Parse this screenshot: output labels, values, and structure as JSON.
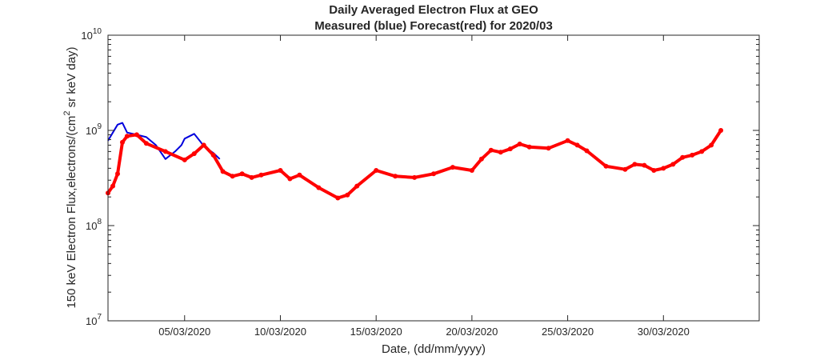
{
  "chart_data": {
    "type": "line",
    "title": "Daily Averaged Electron Flux at GEO",
    "subtitle": "Measured (blue) Forecast(red) for 2020/03",
    "xlabel": "Date, (dd/mm/yyyy)",
    "ylabel_parts": [
      "150 keV Electron Flux,electrons/(cm",
      "2",
      " sr keV day)"
    ],
    "x_scale": "date",
    "xlim": [
      "2020-03-01",
      "2020-04-04"
    ],
    "x_ticks": [
      "2020-03-05",
      "2020-03-10",
      "2020-03-15",
      "2020-03-20",
      "2020-03-25",
      "2020-03-30"
    ],
    "x_tick_labels": [
      "05/03/2020",
      "10/03/2020",
      "15/03/2020",
      "20/03/2020",
      "25/03/2020",
      "30/03/2020"
    ],
    "y_scale": "log",
    "ylim": [
      10000000.0,
      10000000000.0
    ],
    "y_ticks": [
      10000000.0,
      100000000.0,
      1000000000.0,
      10000000000.0
    ],
    "y_tick_labels": [
      {
        "base": "10",
        "exp": "7"
      },
      {
        "base": "10",
        "exp": "8"
      },
      {
        "base": "10",
        "exp": "9"
      },
      {
        "base": "10",
        "exp": "10"
      }
    ],
    "grid": false,
    "series": [
      {
        "style": "line",
        "color": "#0000dd",
        "x": [
          "2020-03-01",
          "2020-03-01T12:00",
          "2020-03-01T18:00",
          "2020-03-02",
          "2020-03-02T12:00",
          "2020-03-03",
          "2020-03-03T12:00",
          "2020-03-04",
          "2020-03-04T12:00",
          "2020-03-04T20:00",
          "2020-03-05",
          "2020-03-05T12:00",
          "2020-03-05T20:00",
          "2020-03-06",
          "2020-03-06T12:00",
          "2020-03-06T20:00"
        ],
        "y": [
          780000000.0,
          1150000000.0,
          1200000000.0,
          950000000.0,
          900000000.0,
          850000000.0,
          700000000.0,
          500000000.0,
          600000000.0,
          700000000.0,
          820000000.0,
          920000000.0,
          760000000.0,
          680000000.0,
          580000000.0,
          500000000.0
        ]
      },
      {
        "style": "markers",
        "color": "#ff0000",
        "x": [
          "2020-03-01",
          "2020-03-01T06:00",
          "2020-03-01T12:00",
          "2020-03-01T18:00",
          "2020-03-02",
          "2020-03-02T12:00",
          "2020-03-03",
          "2020-03-04",
          "2020-03-05",
          "2020-03-05T12:00",
          "2020-03-06",
          "2020-03-06T12:00",
          "2020-03-07",
          "2020-03-07T12:00",
          "2020-03-08",
          "2020-03-08T12:00",
          "2020-03-09",
          "2020-03-10",
          "2020-03-10T12:00",
          "2020-03-11",
          "2020-03-12",
          "2020-03-13",
          "2020-03-13T12:00",
          "2020-03-14",
          "2020-03-15",
          "2020-03-16",
          "2020-03-17",
          "2020-03-18",
          "2020-03-19",
          "2020-03-20",
          "2020-03-20T12:00",
          "2020-03-21",
          "2020-03-21T12:00",
          "2020-03-22",
          "2020-03-22T12:00",
          "2020-03-23",
          "2020-03-24",
          "2020-03-25",
          "2020-03-25T12:00",
          "2020-03-26",
          "2020-03-27",
          "2020-03-28",
          "2020-03-28T12:00",
          "2020-03-29",
          "2020-03-29T12:00",
          "2020-03-30",
          "2020-03-30T12:00",
          "2020-03-31",
          "2020-03-31T12:00",
          "2020-04-01",
          "2020-04-01T12:00",
          "2020-04-02"
        ],
        "y": [
          220000000.0,
          260000000.0,
          350000000.0,
          750000000.0,
          870000000.0,
          900000000.0,
          730000000.0,
          600000000.0,
          490000000.0,
          570000000.0,
          700000000.0,
          550000000.0,
          370000000.0,
          330000000.0,
          350000000.0,
          320000000.0,
          340000000.0,
          380000000.0,
          310000000.0,
          340000000.0,
          250000000.0,
          195000000.0,
          210000000.0,
          260000000.0,
          380000000.0,
          330000000.0,
          320000000.0,
          350000000.0,
          410000000.0,
          380000000.0,
          500000000.0,
          620000000.0,
          590000000.0,
          640000000.0,
          720000000.0,
          670000000.0,
          650000000.0,
          780000000.0,
          700000000.0,
          610000000.0,
          420000000.0,
          390000000.0,
          440000000.0,
          430000000.0,
          380000000.0,
          400000000.0,
          440000000.0,
          520000000.0,
          550000000.0,
          600000000.0,
          700000000.0,
          1000000000.0
        ]
      }
    ]
  }
}
